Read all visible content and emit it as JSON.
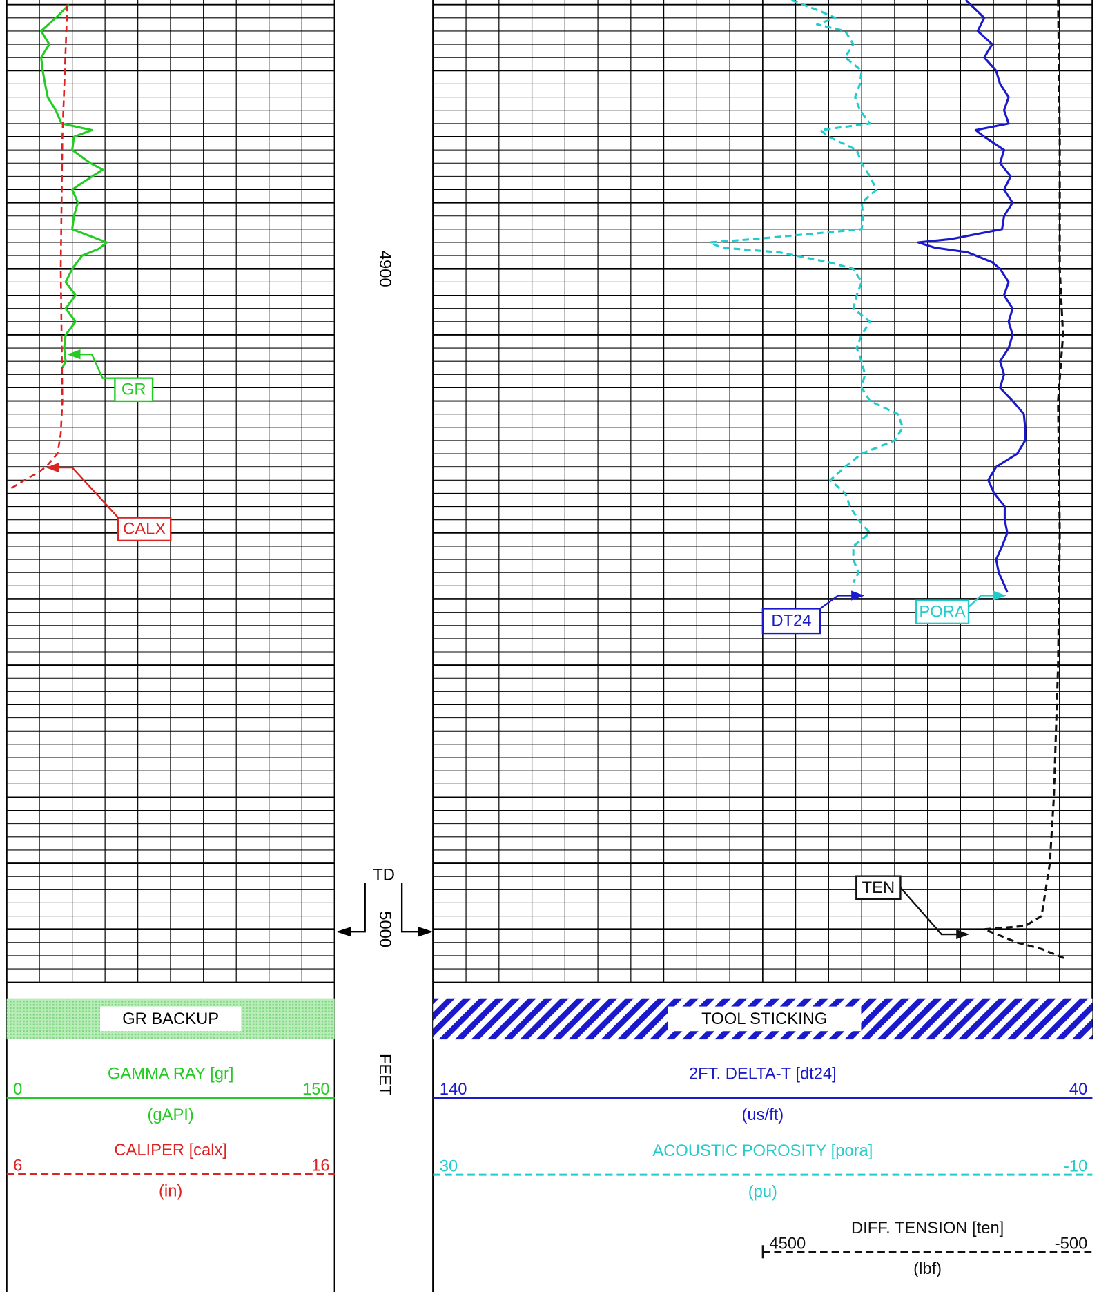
{
  "chart_data": {
    "type": "well_log",
    "ylim": [
      4859.3,
      5008.1
    ],
    "depth_ticks": [
      4900,
      5000
    ],
    "depth_unit": "FEET",
    "td": {
      "label": "TD",
      "depth": 5000
    },
    "grid": {
      "minor": 2,
      "medium": 10,
      "major": 50
    },
    "flags": [
      "GR BACKUP",
      "TOOL STICKING"
    ],
    "curves": [
      {
        "mnemonic": "GR",
        "title": "GAMMA RAY  [gr]",
        "unit": "(gAPI)",
        "left": 0,
        "right": 150,
        "color": "#22cc22",
        "dashed": false,
        "depth": [
          4860,
          4862,
          4864,
          4866,
          4868,
          4870,
          4872,
          4874,
          4876,
          4878,
          4879,
          4880,
          4882,
          4884,
          4885,
          4887,
          4888,
          4890,
          4892,
          4894,
          4896,
          4897,
          4898,
          4900,
          4902,
          4904,
          4906,
          4908,
          4910,
          4912,
          4914,
          4915
        ],
        "values": [
          28.5,
          22.5,
          15.8,
          19.5,
          15.8,
          16.5,
          17.6,
          18.8,
          22.5,
          25.1,
          39,
          30.8,
          30,
          38.3,
          43.9,
          34.5,
          30,
          32.6,
          30.8,
          30,
          45.8,
          42,
          34.5,
          30,
          27,
          31.5,
          27,
          31.5,
          27,
          26.3,
          27,
          25.5
        ]
      },
      {
        "mnemonic": "CALX",
        "title": "CALIPER [calx]",
        "unit": "(in)",
        "left": 6,
        "right": 16,
        "color": "#dd2222",
        "dashed": true,
        "depth": [
          4860,
          4880,
          4900,
          4920,
          4925,
          4928,
          4930,
          4931,
          4932,
          4933.5
        ],
        "values": [
          7.85,
          7.7,
          7.65,
          7.7,
          7.65,
          7.55,
          7.2,
          6.9,
          6.55,
          6.05
        ]
      },
      {
        "mnemonic": "DT24",
        "title": "2FT. DELTA-T  [dt24]",
        "unit": "(us/ft)",
        "left": 140,
        "right": 40,
        "color": "#1a1acc",
        "dashed": false,
        "depth": [
          4859.3,
          4862,
          4864,
          4866,
          4868,
          4870,
          4872,
          4874,
          4876,
          4878,
          4879,
          4880,
          4882,
          4884,
          4886,
          4888,
          4890,
          4892,
          4894,
          4895.5,
          4896,
          4896.8,
          4897.5,
          4899,
          4900,
          4902,
          4904,
          4906,
          4908,
          4910,
          4912,
          4914,
          4916,
          4918,
          4920,
          4922,
          4924,
          4926,
          4928,
          4930,
          4932,
          4934,
          4936,
          4938,
          4940,
          4942,
          4944,
          4946,
          4948,
          4949
        ],
        "values": [
          59.2,
          56.4,
          57.4,
          55.2,
          56.4,
          54.6,
          54,
          52.7,
          53.4,
          52.7,
          57.7,
          56.4,
          53.4,
          54,
          52.4,
          53.4,
          52.1,
          53.4,
          53.7,
          61.4,
          66.4,
          63.9,
          58.9,
          55.2,
          54,
          52.7,
          53.4,
          52.1,
          52.7,
          52.1,
          52.7,
          54,
          53.4,
          54,
          52.1,
          50.4,
          50.2,
          50.2,
          51.4,
          54.6,
          55.8,
          54.9,
          53.3,
          53.3,
          52.9,
          53.7,
          54.6,
          54.2,
          53.3,
          52.9
        ]
      },
      {
        "mnemonic": "PORA",
        "title": "ACOUSTIC POROSITY  [pora]",
        "unit": "(pu)",
        "left": 30,
        "right": -10,
        "color": "#22cccc",
        "dashed": true,
        "depth": [
          4859.3,
          4861,
          4862,
          4863,
          4864,
          4866,
          4868,
          4870,
          4872,
          4874,
          4876,
          4878,
          4879,
          4880,
          4882,
          4884,
          4886,
          4888,
          4890,
          4892,
          4894,
          4895.5,
          4896,
          4896.8,
          4897.5,
          4899,
          4900,
          4902,
          4904,
          4906,
          4908,
          4910,
          4912,
          4914,
          4916,
          4918,
          4920,
          4922,
          4924,
          4926,
          4928,
          4930,
          4932,
          4934,
          4936,
          4938,
          4940,
          4942,
          4944,
          4946,
          4947.5
        ],
        "values": [
          8.26,
          6.5,
          5.6,
          6.7,
          5,
          4.5,
          5,
          4,
          4.1,
          4.4,
          4.1,
          3.5,
          6.5,
          6,
          4.3,
          4,
          3.5,
          3.1,
          4,
          3.9,
          4,
          10.5,
          13.2,
          12.5,
          9,
          6,
          4.5,
          4,
          4.3,
          4.5,
          3.5,
          4,
          4.3,
          4,
          3.8,
          4,
          3.5,
          1.8,
          1.5,
          2,
          4,
          5,
          5.9,
          5,
          4.7,
          4.2,
          3.5,
          4.5,
          4.5,
          4.2,
          4.5
        ]
      },
      {
        "mnemonic": "TEN",
        "title": "DIFF. TENSION  [ten]",
        "unit": "(lbf)",
        "left": 4500,
        "right": -500,
        "color": "#111111",
        "dashed": true,
        "depth": [
          4859.3,
          4880,
          4900,
          4910,
          4920,
          4940,
          4960,
          4980,
          4990,
          4998,
          4999.5,
          5000,
          5001,
          5002,
          5003,
          5004.5
        ],
        "values": [
          20,
          -5,
          -5,
          -55,
          20,
          -5,
          20,
          85,
          145,
          270,
          520,
          1140,
          890,
          645,
          270,
          -100
        ]
      }
    ]
  }
}
